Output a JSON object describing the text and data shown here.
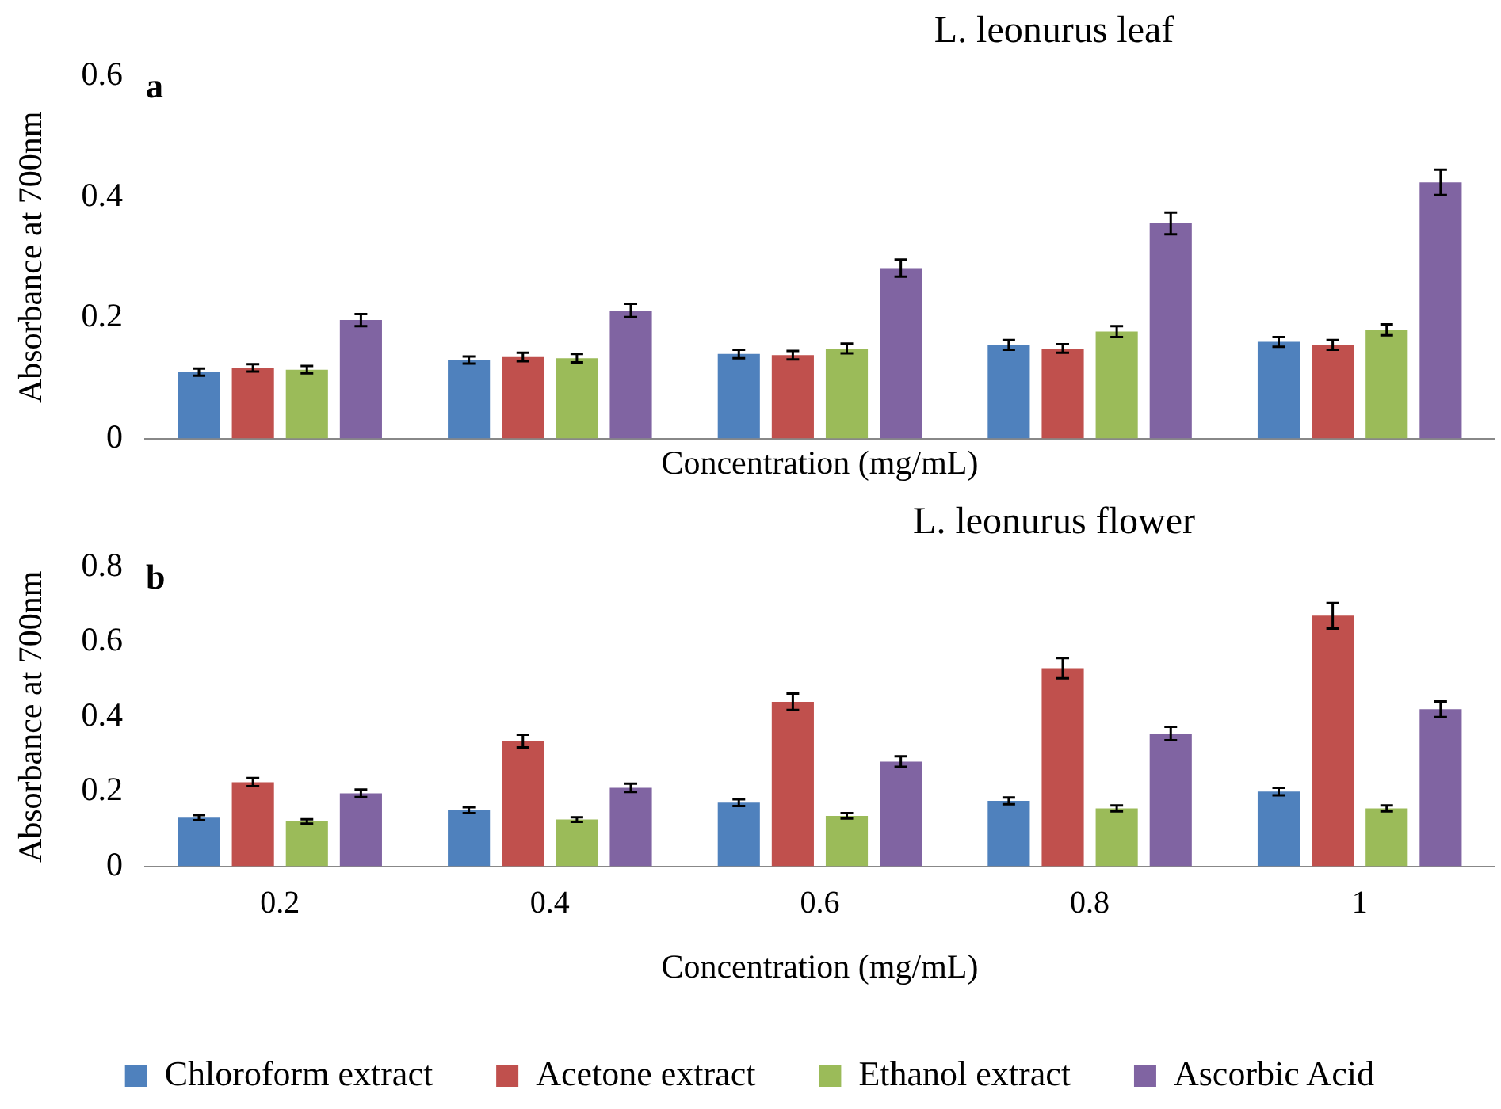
{
  "chart_data": [
    {
      "type": "bar",
      "title": "L. leonurus leaf",
      "annotations": [
        "a"
      ],
      "xlabel": "Concentration (mg/mL)",
      "ylabel": "Absorbance at 700nm",
      "categories": [
        "0.2",
        "0.4",
        "0.6",
        "0.8",
        "1"
      ],
      "tick_labels": "y",
      "legend": false,
      "ylim": [
        0,
        0.6
      ],
      "yticks": [
        0,
        0.2,
        0.4,
        0.6
      ],
      "series": [
        {
          "color": "#4f81bd",
          "values": [
            0.11,
            0.13,
            0.14,
            0.155,
            0.16
          ],
          "errors": [
            0.006,
            0.006,
            0.007,
            0.008,
            0.008
          ]
        },
        {
          "color": "#c0504d",
          "values": [
            0.117,
            0.135,
            0.138,
            0.149,
            0.155
          ],
          "errors": [
            0.006,
            0.007,
            0.007,
            0.007,
            0.008
          ]
        },
        {
          "color": "#9bbb59",
          "values": [
            0.114,
            0.133,
            0.149,
            0.177,
            0.18
          ],
          "errors": [
            0.006,
            0.007,
            0.008,
            0.009,
            0.009
          ]
        },
        {
          "color": "#8064a2",
          "values": [
            0.196,
            0.212,
            0.282,
            0.356,
            0.424
          ],
          "errors": [
            0.01,
            0.011,
            0.014,
            0.018,
            0.021
          ]
        }
      ]
    },
    {
      "type": "bar",
      "title": "L. leonurus flower",
      "annotations": [
        "b"
      ],
      "xlabel": "Concentration (mg/mL)",
      "ylabel": "Absorbance at 700nm",
      "categories": [
        "0.2",
        "0.4",
        "0.6",
        "0.8",
        "1"
      ],
      "legend": "bottom",
      "ylim": [
        0,
        0.8
      ],
      "yticks": [
        0,
        0.2,
        0.4,
        0.6,
        0.8
      ],
      "series": [
        {
          "name": "Chloroform extract",
          "color": "#4f81bd",
          "values": [
            0.13,
            0.15,
            0.17,
            0.175,
            0.2
          ],
          "errors": [
            0.007,
            0.008,
            0.009,
            0.009,
            0.01
          ]
        },
        {
          "name": "Acetone extract",
          "color": "#c0504d",
          "values": [
            0.225,
            0.335,
            0.44,
            0.53,
            0.67
          ],
          "errors": [
            0.011,
            0.017,
            0.022,
            0.027,
            0.034
          ]
        },
        {
          "name": "Ethanol extract",
          "color": "#9bbb59",
          "values": [
            0.12,
            0.125,
            0.135,
            0.155,
            0.155
          ],
          "errors": [
            0.006,
            0.006,
            0.007,
            0.008,
            0.008
          ]
        },
        {
          "name": "Ascorbic Acid",
          "color": "#8064a2",
          "values": [
            0.195,
            0.21,
            0.28,
            0.355,
            0.42
          ],
          "errors": [
            0.01,
            0.011,
            0.014,
            0.018,
            0.021
          ]
        }
      ]
    }
  ]
}
